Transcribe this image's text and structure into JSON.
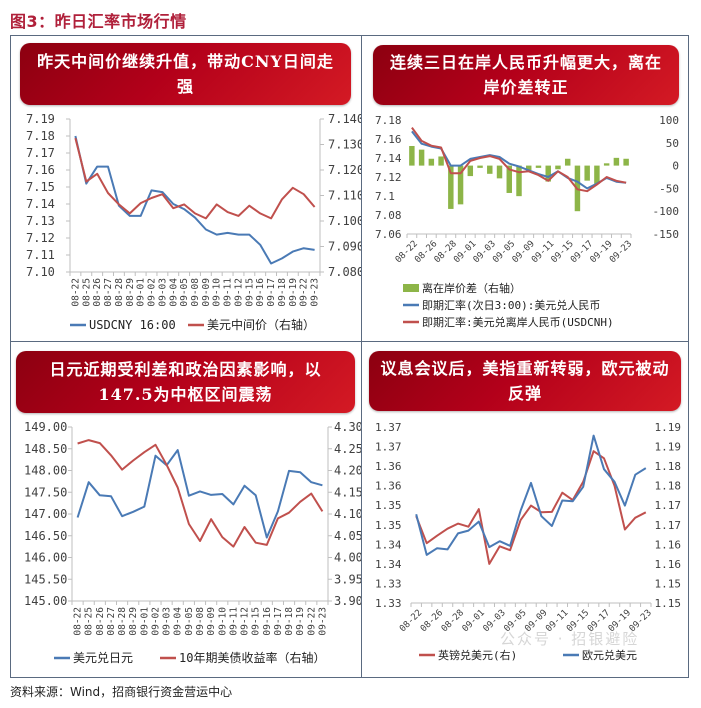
{
  "figure": {
    "title": "图3：昨日汇率市场行情",
    "title_color": "#b0203a",
    "source": "资料来源：Wind，招商银行资金营运中心",
    "watermark": "公众号 · 招银避险"
  },
  "colors": {
    "blue": "#4a7ab5",
    "red": "#c0504d",
    "green": "#8db548",
    "axis": "#bfbfbf",
    "text": "#404040"
  },
  "panels": [
    {
      "banner": "昨天中间价继续升值，带动CNY日间走强",
      "legend": [
        "USDCNY 16:00",
        "美元中间价（右轴）"
      ]
    },
    {
      "banner": "连续三日在岸人民币升幅更大，离在岸价差转正",
      "legend": [
        "离在岸价差（右轴）",
        "即期汇率(次日3:00):美元兑人民币",
        "即期汇率:美元兑离岸人民币(USDCNH)"
      ]
    },
    {
      "banner": "日元近期受利差和政治因素影响，以147.5为中枢区间震荡",
      "legend": [
        "美元兑日元",
        "10年期美债收益率（右轴）"
      ]
    },
    {
      "banner": "议息会议后，美指重新转弱，欧元被动反弹",
      "legend": [
        "英镑兑美元(右)",
        "欧元兑美元"
      ]
    }
  ],
  "chart_data": [
    {
      "type": "line",
      "title": "昨天中间价继续升值，带动CNY日间走强",
      "x": [
        "08-22",
        "08-25",
        "08-26",
        "08-27",
        "08-28",
        "08-29",
        "09-01",
        "09-02",
        "09-03",
        "09-04",
        "09-05",
        "09-08",
        "09-09",
        "09-10",
        "09-11",
        "09-12",
        "09-15",
        "09-16",
        "09-17",
        "09-18",
        "09-19",
        "09-22",
        "09-23"
      ],
      "y_left": {
        "ticks": [
          "7.19",
          "7.18",
          "7.17",
          "7.16",
          "7.15",
          "7.14",
          "7.13",
          "7.12",
          "7.11",
          "7.10"
        ],
        "range": [
          7.1,
          7.19
        ]
      },
      "y_right": {
        "ticks": [
          "7.140",
          "7.130",
          "7.120",
          "7.110",
          "7.100",
          "7.090",
          "7.080"
        ],
        "range": [
          7.08,
          7.14
        ]
      },
      "series": [
        {
          "name": "USDCNY 16:00",
          "axis": "left",
          "color": "#4a7ab5",
          "values": [
            7.18,
            7.152,
            7.162,
            7.162,
            7.139,
            7.133,
            7.133,
            7.148,
            7.147,
            7.14,
            7.137,
            7.132,
            7.125,
            7.122,
            7.123,
            7.122,
            7.122,
            7.116,
            7.105,
            7.108,
            7.112,
            7.114,
            7.113
          ]
        },
        {
          "name": "美元中间价（右轴）",
          "axis": "right",
          "color": "#c0504d",
          "values": [
            7.1325,
            7.1155,
            7.1185,
            7.111,
            7.1065,
            7.103,
            7.107,
            7.109,
            7.1105,
            7.105,
            7.1065,
            7.103,
            7.101,
            7.1065,
            7.1035,
            7.102,
            7.106,
            7.103,
            7.101,
            7.1085,
            7.113,
            7.1105,
            7.1055
          ]
        }
      ]
    },
    {
      "type": "bar+line",
      "title": "连续三日在岸人民币升幅更大，离在岸价差转正",
      "x": [
        "08-22",
        "08-25",
        "08-26",
        "08-27",
        "08-28",
        "08-29",
        "09-01",
        "09-02",
        "09-03",
        "09-04",
        "09-05",
        "09-08",
        "09-09",
        "09-10",
        "09-11",
        "09-12",
        "09-15",
        "09-16",
        "09-17",
        "09-18",
        "09-19",
        "09-22",
        "09-23"
      ],
      "x_tick_labels": [
        "08-22",
        "08-26",
        "08-28",
        "09-01",
        "09-03",
        "09-05",
        "09-09",
        "09-11",
        "09-15",
        "09-17",
        "09-19",
        "09-23"
      ],
      "y_left": {
        "ticks": [
          "7.18",
          "7.16",
          "7.14",
          "7.12",
          "7.1",
          "7.08",
          "7.06"
        ],
        "range": [
          7.06,
          7.18
        ]
      },
      "y_right": {
        "ticks": [
          "100",
          "50",
          "0",
          "-50",
          "-100",
          "-150"
        ],
        "range": [
          -150,
          100
        ]
      },
      "series": [
        {
          "name": "离在岸价差（右轴）",
          "axis": "right",
          "kind": "bar",
          "color": "#8db548",
          "values": [
            43,
            35,
            15,
            20,
            -95,
            -85,
            -23,
            -5,
            -18,
            -28,
            -60,
            -67,
            -10,
            -5,
            -35,
            -8,
            15,
            -100,
            -33,
            -40,
            5,
            17,
            15
          ]
        },
        {
          "name": "即期汇率(次日3:00):美元兑人民币",
          "axis": "left",
          "kind": "line",
          "color": "#4a7ab5",
          "values": [
            7.168,
            7.155,
            7.152,
            7.15,
            7.132,
            7.132,
            7.139,
            7.141,
            7.143,
            7.141,
            7.134,
            7.131,
            7.127,
            7.123,
            7.12,
            7.126,
            7.119,
            7.115,
            7.108,
            7.113,
            7.119,
            7.115,
            7.114
          ]
        },
        {
          "name": "即期汇率:美元兑离岸人民币(USDCNH)",
          "axis": "left",
          "kind": "line",
          "color": "#c0504d",
          "values": [
            7.172,
            7.158,
            7.153,
            7.151,
            7.124,
            7.124,
            7.137,
            7.14,
            7.142,
            7.139,
            7.128,
            7.125,
            7.126,
            7.122,
            7.116,
            7.126,
            7.12,
            7.107,
            7.105,
            7.112,
            7.12,
            7.116,
            7.114
          ]
        }
      ]
    },
    {
      "type": "line",
      "title": "日元近期受利差和政治因素影响，以147.5为中枢区间震荡",
      "x": [
        "08-22",
        "08-25",
        "08-26",
        "08-27",
        "08-28",
        "08-29",
        "09-01",
        "09-02",
        "09-03",
        "09-04",
        "09-05",
        "09-08",
        "09-09",
        "09-10",
        "09-11",
        "09-12",
        "09-15",
        "09-16",
        "09-17",
        "09-18",
        "09-19",
        "09-22",
        "09-23"
      ],
      "y_left": {
        "ticks": [
          "149.00",
          "148.50",
          "148.00",
          "147.50",
          "147.00",
          "146.50",
          "146.00",
          "145.50",
          "145.00"
        ],
        "range": [
          145.0,
          149.0
        ]
      },
      "y_right": {
        "ticks": [
          "4.30",
          "4.25",
          "4.20",
          "4.15",
          "4.10",
          "4.05",
          "4.00",
          "3.95",
          "3.90"
        ],
        "range": [
          3.9,
          4.3
        ]
      },
      "series": [
        {
          "name": "美元兑日元",
          "axis": "left",
          "color": "#4a7ab5",
          "values": [
            146.92,
            147.73,
            147.43,
            147.41,
            146.95,
            147.05,
            147.17,
            148.34,
            148.12,
            148.47,
            147.42,
            147.52,
            147.44,
            147.46,
            147.22,
            147.65,
            147.43,
            146.46,
            147.06,
            147.99,
            147.96,
            147.73,
            147.66
          ]
        },
        {
          "name": "10年期美债收益率（右轴）",
          "axis": "right",
          "color": "#c0504d",
          "values": [
            4.262,
            4.27,
            4.263,
            4.235,
            4.202,
            4.223,
            4.242,
            4.259,
            4.213,
            4.161,
            4.077,
            4.038,
            4.088,
            4.047,
            4.025,
            4.07,
            4.034,
            4.029,
            4.09,
            4.103,
            4.128,
            4.147,
            4.106
          ]
        }
      ]
    },
    {
      "type": "line",
      "title": "议息会议后，美指重新转弱，欧元被动反弹",
      "x": [
        "08-22",
        "08-25",
        "08-26",
        "08-27",
        "08-28",
        "08-29",
        "09-01",
        "09-02",
        "09-03",
        "09-04",
        "09-05",
        "09-08",
        "09-09",
        "09-10",
        "09-11",
        "09-12",
        "09-15",
        "09-16",
        "09-17",
        "09-18",
        "09-19",
        "09-22",
        "09-23"
      ],
      "x_tick_labels": [
        "08-22",
        "08-26",
        "08-28",
        "09-01",
        "09-03",
        "09-05",
        "09-09",
        "09-11",
        "09-15",
        "09-17",
        "09-19",
        "09-23"
      ],
      "y_left": {
        "ticks": [
          "1.37",
          "1.37",
          "1.36",
          "1.36",
          "1.35",
          "1.35",
          "1.34",
          "1.34",
          "1.33",
          "1.33"
        ],
        "range": [
          1.33,
          1.375
        ]
      },
      "y_right": {
        "ticks": [
          "1.19",
          "1.19",
          "1.18",
          "1.18",
          "1.17",
          "1.17",
          "1.16",
          "1.16",
          "1.15",
          "1.15"
        ],
        "range": [
          1.15,
          1.195
        ]
      },
      "series": [
        {
          "name": "英镑兑美元(右)",
          "axis": "right",
          "color": "#c0504d",
          "values": [
            1.1722,
            1.1653,
            1.1672,
            1.169,
            1.1703,
            1.1695,
            1.174,
            1.16,
            1.1645,
            1.1635,
            1.1712,
            1.1749,
            1.1732,
            1.1733,
            1.1782,
            1.1763,
            1.181,
            1.1888,
            1.187,
            1.18,
            1.1688,
            1.1718,
            1.1732
          ]
        },
        {
          "name": "欧元兑美元",
          "axis": "left",
          "color": "#4a7ab5",
          "values": [
            1.3527,
            1.3423,
            1.344,
            1.3437,
            1.3478,
            1.3485,
            1.3508,
            1.3443,
            1.3458,
            1.3446,
            1.3536,
            1.3607,
            1.3522,
            1.3497,
            1.3562,
            1.356,
            1.3597,
            1.3728,
            1.3642,
            1.361,
            1.3549,
            1.3628,
            1.3645
          ]
        }
      ]
    }
  ]
}
